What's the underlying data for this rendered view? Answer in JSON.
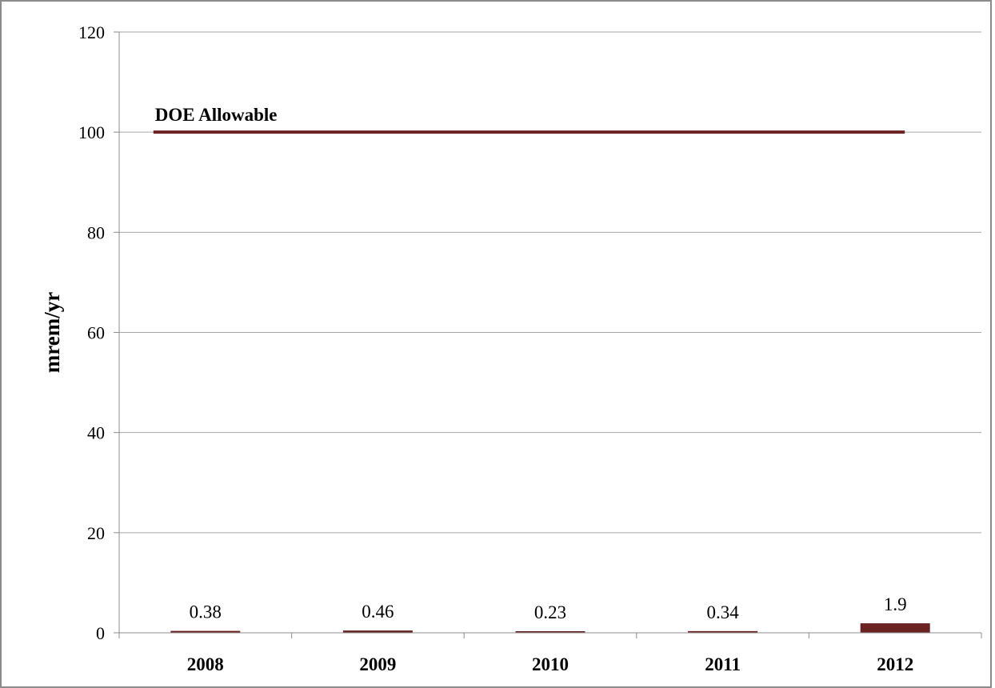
{
  "chart_data": {
    "type": "bar",
    "categories": [
      "2008",
      "2009",
      "2010",
      "2011",
      "2012"
    ],
    "values": [
      0.38,
      0.46,
      0.23,
      0.34,
      1.9
    ],
    "data_labels": [
      "0.38",
      "0.46",
      "0.23",
      "0.34",
      "1.9"
    ],
    "title": "",
    "xlabel": "",
    "ylabel": "mrem/yr",
    "ylim": [
      0,
      120
    ],
    "yticks": [
      0,
      20,
      40,
      60,
      80,
      100,
      120
    ],
    "grid": true,
    "reference_line": {
      "label": "DOE Allowable",
      "value": 100
    },
    "colors": {
      "bar": "#6b2222",
      "reference_line": "#6b2222",
      "grid": "#a6a6a6"
    }
  }
}
